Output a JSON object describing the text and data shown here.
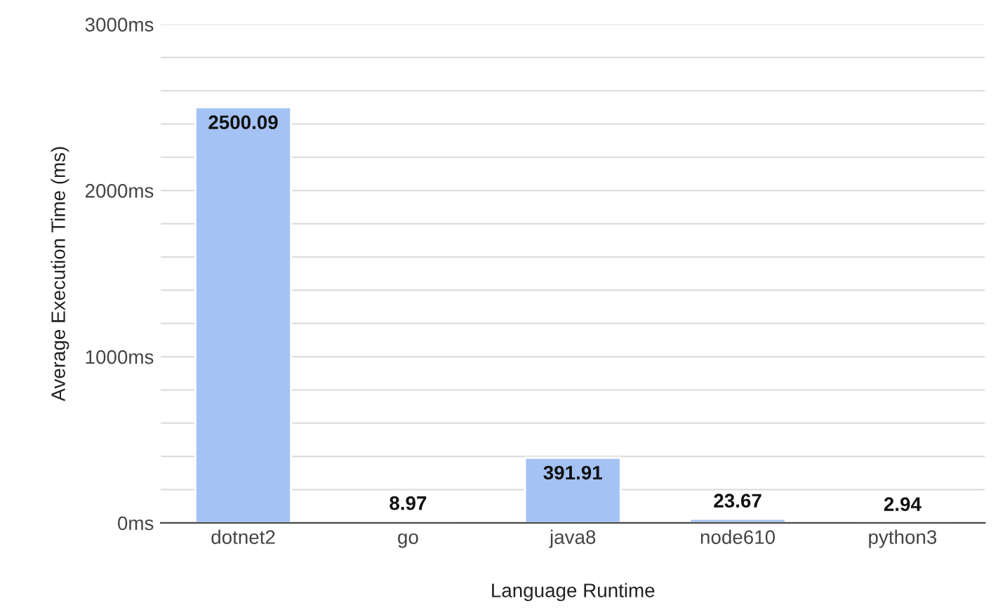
{
  "chart_data": {
    "type": "bar",
    "xlabel": "Language Runtime",
    "ylabel": "Average Execution Time (ms)",
    "categories": [
      "dotnet2",
      "go",
      "java8",
      "node610",
      "python3"
    ],
    "values": [
      2500.09,
      8.97,
      391.91,
      23.67,
      2.94
    ],
    "color": "#a4c2f4",
    "data_labels": true,
    "ylim": [
      0,
      3000
    ],
    "yticks": [
      {
        "value": 0,
        "label": "0ms"
      },
      {
        "value": 200,
        "label": null
      },
      {
        "value": 400,
        "label": null
      },
      {
        "value": 600,
        "label": null
      },
      {
        "value": 800,
        "label": null
      },
      {
        "value": 1000,
        "label": "1000ms"
      },
      {
        "value": 1200,
        "label": null
      },
      {
        "value": 1400,
        "label": null
      },
      {
        "value": 1600,
        "label": null
      },
      {
        "value": 1800,
        "label": null
      },
      {
        "value": 2000,
        "label": "2000ms"
      },
      {
        "value": 2200,
        "label": null
      },
      {
        "value": 2400,
        "label": null
      },
      {
        "value": 2600,
        "label": null
      },
      {
        "value": 2800,
        "label": null
      },
      {
        "value": 3000,
        "label": "3000ms"
      }
    ],
    "grid": "y",
    "legend": false
  }
}
